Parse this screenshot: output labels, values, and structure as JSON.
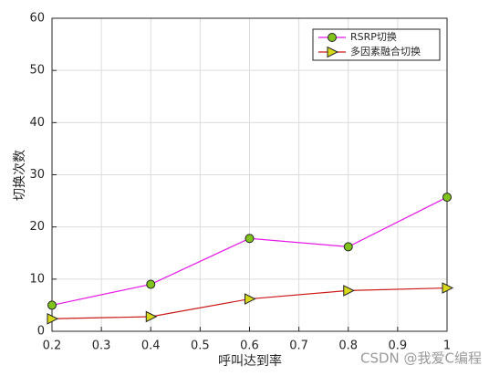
{
  "chart_data": {
    "type": "line",
    "xlabel": "呼叫达到率",
    "ylabel": "切换次数",
    "x": [
      0.2,
      0.4,
      0.6,
      0.8,
      1
    ],
    "series": [
      {
        "name": "RSRP切换",
        "color": "#e619e6",
        "marker": "circle",
        "marker_color": "#7fc31c",
        "values": [
          5,
          9,
          17.8,
          16.2,
          25.7
        ]
      },
      {
        "name": "多因素融合切换",
        "color": "#cc1a1a",
        "marker": "triangle-right",
        "marker_color": "#d8d81a",
        "values": [
          2.4,
          2.8,
          6.2,
          7.8,
          8.3
        ]
      }
    ],
    "xlim": [
      0.2,
      1
    ],
    "xticks": [
      0.2,
      0.3,
      0.4,
      0.5,
      0.6,
      0.7,
      0.8,
      0.9,
      1
    ],
    "ylim": [
      0,
      60
    ],
    "yticks": [
      0,
      10,
      20,
      30,
      40,
      50,
      60
    ],
    "grid": true,
    "legend": "top-right",
    "watermark": "CSDN @我爱C编程"
  }
}
